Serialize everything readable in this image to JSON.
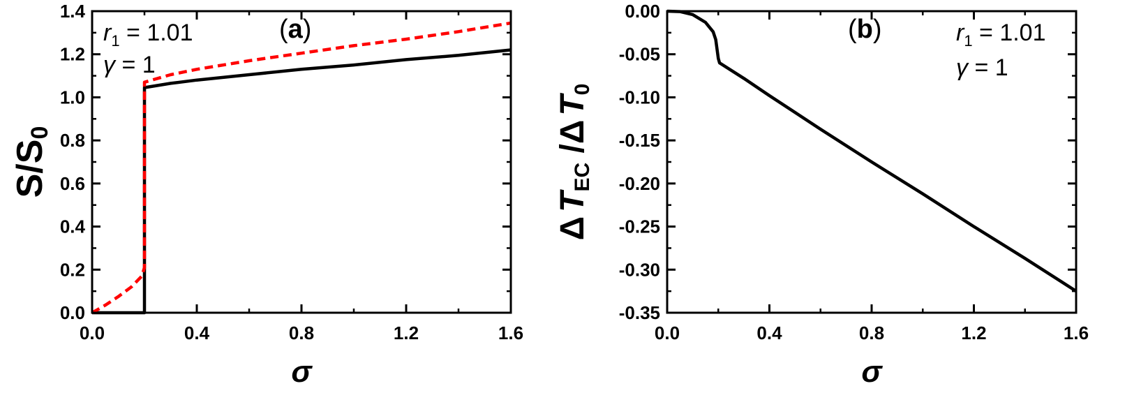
{
  "chart_data": [
    {
      "type": "line",
      "panel_label": "(a)",
      "panel_label_letter": "a",
      "xlabel": "σ",
      "ylabel": "S/S0",
      "ylabel_main": "S/S",
      "ylabel_sub": "0",
      "xlim": [
        0.0,
        1.6
      ],
      "ylim": [
        0.0,
        1.4
      ],
      "xticks": [
        0.0,
        0.4,
        0.8,
        1.2,
        1.6
      ],
      "xtick_labels": [
        "0.0",
        "0.4",
        "0.8",
        "1.2",
        "1.6"
      ],
      "yticks": [
        0.0,
        0.2,
        0.4,
        0.6,
        0.8,
        1.0,
        1.2,
        1.4
      ],
      "ytick_labels": [
        "0.0",
        "0.2",
        "0.4",
        "0.6",
        "0.8",
        "1.0",
        "1.2",
        "1.4"
      ],
      "annotations": {
        "r1_symbol": "r",
        "r1_sub": "1",
        "r1_value": " = 1.01",
        "gamma_symbol": "γ",
        "gamma_value": " = 1"
      },
      "series": [
        {
          "style": "solid",
          "color": "#000000",
          "points": [
            [
              0.0,
              0.0
            ],
            [
              0.2,
              0.0
            ],
            [
              0.2,
              1.045
            ],
            [
              0.3,
              1.065
            ],
            [
              0.4,
              1.08
            ],
            [
              0.6,
              1.105
            ],
            [
              0.8,
              1.13
            ],
            [
              1.0,
              1.15
            ],
            [
              1.2,
              1.175
            ],
            [
              1.4,
              1.195
            ],
            [
              1.6,
              1.22
            ]
          ]
        },
        {
          "style": "dashed",
          "color": "#ff0000",
          "points": [
            [
              0.0,
              0.0
            ],
            [
              0.05,
              0.035
            ],
            [
              0.1,
              0.075
            ],
            [
              0.15,
              0.12
            ],
            [
              0.19,
              0.17
            ],
            [
              0.2,
              0.21
            ],
            [
              0.2,
              1.07
            ],
            [
              0.3,
              1.105
            ],
            [
              0.4,
              1.13
            ],
            [
              0.6,
              1.17
            ],
            [
              0.8,
              1.205
            ],
            [
              1.0,
              1.24
            ],
            [
              1.2,
              1.27
            ],
            [
              1.4,
              1.305
            ],
            [
              1.6,
              1.345
            ]
          ]
        }
      ]
    },
    {
      "type": "line",
      "panel_label": "(b)",
      "panel_label_letter": "b",
      "xlabel": "σ",
      "ylabel": "ΔTEC/ΔT0",
      "ylabel_delta": "Δ",
      "ylabel_T": "T",
      "ylabel_sub1": "EC",
      "ylabel_sep": " /",
      "ylabel_sub2": "0",
      "xlim": [
        0.0,
        1.6
      ],
      "ylim": [
        -0.35,
        0.0
      ],
      "xticks": [
        0.0,
        0.4,
        0.8,
        1.2,
        1.6
      ],
      "xtick_labels": [
        "0.0",
        "0.4",
        "0.8",
        "1.2",
        "1.6"
      ],
      "yticks": [
        0.0,
        -0.05,
        -0.1,
        -0.15,
        -0.2,
        -0.25,
        -0.3,
        -0.35
      ],
      "ytick_labels": [
        "0.00",
        "-0.05",
        "-0.10",
        "-0.15",
        "-0.20",
        "-0.25",
        "-0.30",
        "-0.35"
      ],
      "annotations": {
        "r1_symbol": "r",
        "r1_sub": "1",
        "r1_value": " = 1.01",
        "gamma_symbol": "γ",
        "gamma_value": " = 1"
      },
      "series": [
        {
          "style": "solid",
          "color": "#000000",
          "points": [
            [
              0.0,
              0.0
            ],
            [
              0.05,
              -0.0005
            ],
            [
              0.1,
              -0.004
            ],
            [
              0.15,
              -0.013
            ],
            [
              0.18,
              -0.024
            ],
            [
              0.19,
              -0.033
            ],
            [
              0.2,
              -0.055
            ],
            [
              0.205,
              -0.06
            ],
            [
              0.3,
              -0.078
            ],
            [
              0.4,
              -0.098
            ],
            [
              0.6,
              -0.137
            ],
            [
              0.8,
              -0.175
            ],
            [
              1.0,
              -0.212
            ],
            [
              1.2,
              -0.25
            ],
            [
              1.4,
              -0.287
            ],
            [
              1.6,
              -0.325
            ]
          ]
        }
      ]
    }
  ]
}
